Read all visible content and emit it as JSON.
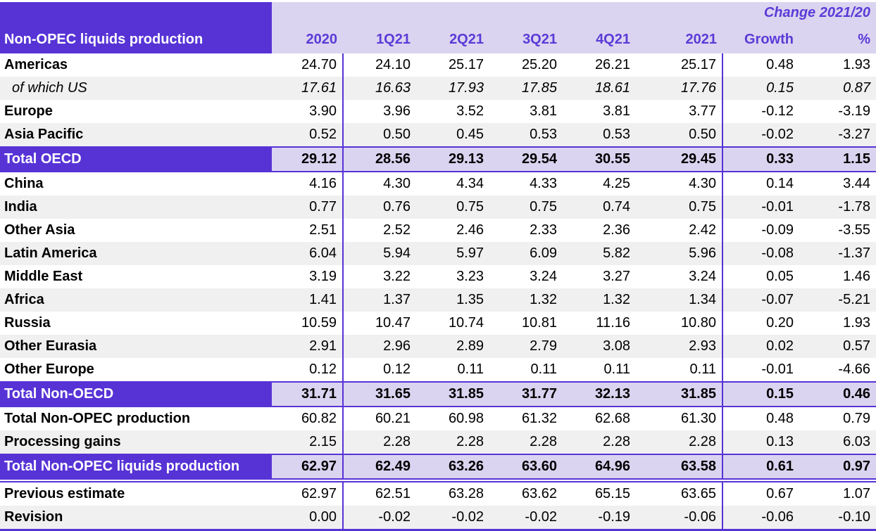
{
  "table": {
    "title": "Non-OPEC liquids production",
    "change_header": "Change 2021/20",
    "columns": [
      "2020",
      "1Q21",
      "2Q21",
      "3Q21",
      "4Q21",
      "2021",
      "Growth",
      "%"
    ],
    "colors": {
      "accent": "#5733d6",
      "header_bg": "#dbd4f0",
      "stripe": "#f0f0f0",
      "header_text": "#5a3bd7"
    },
    "rows": [
      {
        "label": "Americas",
        "style": "normal",
        "values": [
          "24.70",
          "24.10",
          "25.17",
          "25.20",
          "26.21",
          "25.17",
          "0.48",
          "1.93"
        ]
      },
      {
        "label": "of which US",
        "style": "italic",
        "values": [
          "17.61",
          "16.63",
          "17.93",
          "17.85",
          "18.61",
          "17.76",
          "0.15",
          "0.87"
        ]
      },
      {
        "label": "Europe",
        "style": "normal",
        "values": [
          "3.90",
          "3.96",
          "3.52",
          "3.81",
          "3.81",
          "3.77",
          "-0.12",
          "-3.19"
        ]
      },
      {
        "label": "Asia Pacific",
        "style": "normal",
        "values": [
          "0.52",
          "0.50",
          "0.45",
          "0.53",
          "0.53",
          "0.50",
          "-0.02",
          "-3.27"
        ]
      },
      {
        "label": "Total OECD",
        "style": "total",
        "values": [
          "29.12",
          "28.56",
          "29.13",
          "29.54",
          "30.55",
          "29.45",
          "0.33",
          "1.15"
        ]
      },
      {
        "label": "China",
        "style": "normal",
        "values": [
          "4.16",
          "4.30",
          "4.34",
          "4.33",
          "4.25",
          "4.30",
          "0.14",
          "3.44"
        ]
      },
      {
        "label": "India",
        "style": "normal",
        "values": [
          "0.77",
          "0.76",
          "0.75",
          "0.75",
          "0.74",
          "0.75",
          "-0.01",
          "-1.78"
        ]
      },
      {
        "label": "Other Asia",
        "style": "normal",
        "values": [
          "2.51",
          "2.52",
          "2.46",
          "2.33",
          "2.36",
          "2.42",
          "-0.09",
          "-3.55"
        ]
      },
      {
        "label": "Latin America",
        "style": "normal",
        "values": [
          "6.04",
          "5.94",
          "5.97",
          "6.09",
          "5.82",
          "5.96",
          "-0.08",
          "-1.37"
        ]
      },
      {
        "label": "Middle East",
        "style": "normal",
        "values": [
          "3.19",
          "3.22",
          "3.23",
          "3.24",
          "3.27",
          "3.24",
          "0.05",
          "1.46"
        ]
      },
      {
        "label": "Africa",
        "style": "normal",
        "values": [
          "1.41",
          "1.37",
          "1.35",
          "1.32",
          "1.32",
          "1.34",
          "-0.07",
          "-5.21"
        ]
      },
      {
        "label": "Russia",
        "style": "normal",
        "values": [
          "10.59",
          "10.47",
          "10.74",
          "10.81",
          "11.16",
          "10.80",
          "0.20",
          "1.93"
        ]
      },
      {
        "label": "Other Eurasia",
        "style": "normal",
        "values": [
          "2.91",
          "2.96",
          "2.89",
          "2.79",
          "3.08",
          "2.93",
          "0.02",
          "0.57"
        ]
      },
      {
        "label": "Other Europe",
        "style": "normal",
        "values": [
          "0.12",
          "0.12",
          "0.11",
          "0.11",
          "0.11",
          "0.11",
          "-0.01",
          "-4.66"
        ]
      },
      {
        "label": "Total Non-OECD",
        "style": "total",
        "values": [
          "31.71",
          "31.65",
          "31.85",
          "31.77",
          "32.13",
          "31.85",
          "0.15",
          "0.46"
        ]
      },
      {
        "label": "Total Non-OPEC production",
        "style": "normal",
        "values": [
          "60.82",
          "60.21",
          "60.98",
          "61.32",
          "62.68",
          "61.30",
          "0.48",
          "0.79"
        ]
      },
      {
        "label": "Processing gains",
        "style": "normal",
        "values": [
          "2.15",
          "2.28",
          "2.28",
          "2.28",
          "2.28",
          "2.28",
          "0.13",
          "6.03"
        ]
      },
      {
        "label": "Total Non-OPEC liquids production",
        "style": "total-final",
        "values": [
          "62.97",
          "62.49",
          "63.26",
          "63.60",
          "64.96",
          "63.58",
          "0.61",
          "0.97"
        ]
      },
      {
        "label": "Previous estimate",
        "style": "normal",
        "values": [
          "62.97",
          "62.51",
          "63.28",
          "63.62",
          "65.15",
          "63.65",
          "0.67",
          "1.07"
        ]
      },
      {
        "label": "Revision",
        "style": "normal",
        "values": [
          "0.00",
          "-0.02",
          "-0.02",
          "-0.02",
          "-0.19",
          "-0.06",
          "-0.06",
          "-0.10"
        ]
      }
    ]
  }
}
